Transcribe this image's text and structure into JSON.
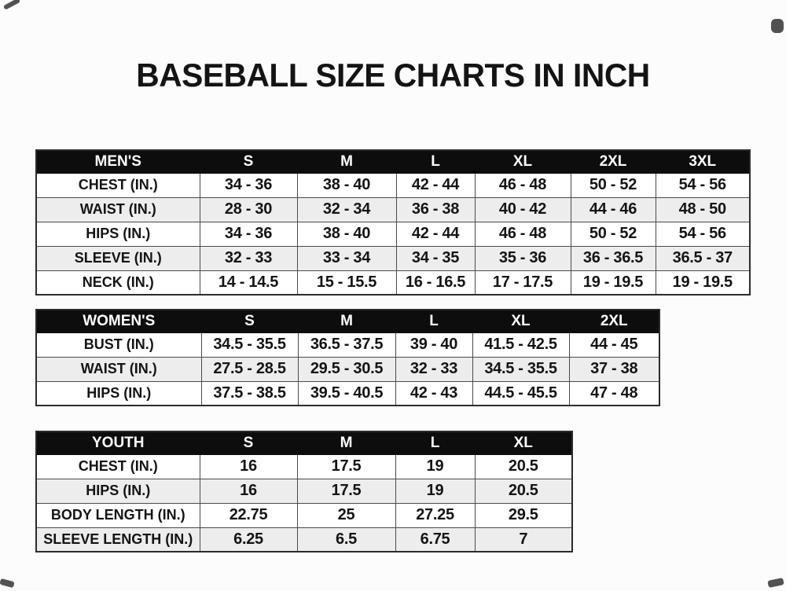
{
  "page": {
    "title": "BASEBALL SIZE CHARTS IN INCH"
  },
  "colors": {
    "header_bg": "#0d0d0d",
    "header_text": "#ffffff",
    "row_bg": "#ffffff",
    "row_alt_bg": "#ededed",
    "border": "#4a4a4a",
    "text": "#141414",
    "page_bg": "#fcfcfc"
  },
  "chart_data": [
    {
      "type": "table",
      "name": "mens-sizes",
      "unit": "inches",
      "header": [
        "MEN'S",
        "S",
        "M",
        "L",
        "XL",
        "2XL",
        "3XL"
      ],
      "rows": [
        [
          "CHEST (IN.)",
          "34 - 36",
          "38 - 40",
          "42 - 44",
          "46 - 48",
          "50 - 52",
          "54 - 56"
        ],
        [
          "WAIST (IN.)",
          "28 - 30",
          "32 - 34",
          "36 - 38",
          "40 - 42",
          "44 - 46",
          "48 - 50"
        ],
        [
          "HIPS (IN.)",
          "34 - 36",
          "38 - 40",
          "42 - 44",
          "46 - 48",
          "50 - 52",
          "54 - 56"
        ],
        [
          "SLEEVE (IN.)",
          "32 - 33",
          "33 - 34",
          "34 - 35",
          "35 - 36",
          "36 - 36.5",
          "36.5 - 37"
        ],
        [
          "NECK (IN.)",
          "14 - 14.5",
          "15 - 15.5",
          "16 - 16.5",
          "17 - 17.5",
          "19 - 19.5",
          "19 - 19.5"
        ]
      ]
    },
    {
      "type": "table",
      "name": "womens-sizes",
      "unit": "inches",
      "header": [
        "WOMEN'S",
        "S",
        "M",
        "L",
        "XL",
        "2XL"
      ],
      "rows": [
        [
          "BUST (IN.)",
          "34.5 - 35.5",
          "36.5 - 37.5",
          "39 - 40",
          "41.5 - 42.5",
          "44 - 45"
        ],
        [
          "WAIST (IN.)",
          "27.5 - 28.5",
          "29.5 - 30.5",
          "32 - 33",
          "34.5 - 35.5",
          "37 - 38"
        ],
        [
          "HIPS (IN.)",
          "37.5 - 38.5",
          "39.5 - 40.5",
          "42 - 43",
          "44.5 - 45.5",
          "47 - 48"
        ]
      ]
    },
    {
      "type": "table",
      "name": "youth-sizes",
      "unit": "inches",
      "header": [
        "YOUTH",
        "S",
        "M",
        "L",
        "XL"
      ],
      "rows": [
        [
          "CHEST (IN.)",
          "16",
          "17.5",
          "19",
          "20.5"
        ],
        [
          "HIPS (IN.)",
          "16",
          "17.5",
          "19",
          "20.5"
        ],
        [
          "BODY LENGTH (IN.)",
          "22.75",
          "25",
          "27.25",
          "29.5"
        ],
        [
          "SLEEVE LENGTH (IN.)",
          "6.25",
          "6.5",
          "6.75",
          "7"
        ]
      ]
    }
  ]
}
